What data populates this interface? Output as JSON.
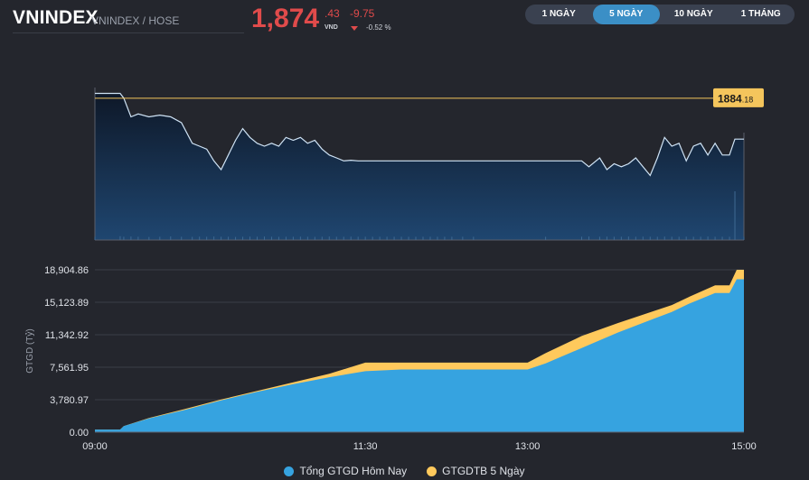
{
  "header": {
    "ticker": "VNINDEX",
    "exchange": "VNINDEX / HOSE",
    "price_int": "1,874",
    "price_dec": ".43",
    "unit": "VND",
    "change": "-9.75",
    "change_pct": "-0.52 %"
  },
  "range_tabs": [
    {
      "label": "1 NGÀY",
      "active": false
    },
    {
      "label": "5 NGÀY",
      "active": true
    },
    {
      "label": "10 NGÀY",
      "active": false
    },
    {
      "label": "1 THÁNG",
      "active": false
    }
  ],
  "colors": {
    "price_line": "#cfe3f5",
    "reference_line": "#f4c55c",
    "today_value": "#36a3e0",
    "avg_5day": "#ffc95c",
    "negative": "#e04b4b"
  },
  "chart_data": [
    {
      "type": "line",
      "title": "",
      "reference": {
        "value": 1884.18,
        "label_int": "1884",
        "label_dec": ".18"
      },
      "ylim": [
        1860,
        1886
      ],
      "xlim": [
        0,
        360
      ],
      "x": [
        0,
        14,
        16,
        20,
        24,
        30,
        36,
        42,
        48,
        54,
        58,
        62,
        66,
        70,
        74,
        78,
        82,
        86,
        90,
        94,
        98,
        102,
        106,
        110,
        114,
        118,
        122,
        126,
        130,
        134,
        138,
        142,
        146,
        150,
        154,
        158,
        162,
        166,
        170,
        174,
        178,
        182,
        186,
        190,
        194,
        198,
        204,
        210,
        250,
        270,
        274,
        280,
        284,
        288,
        292,
        296,
        300,
        304,
        308,
        312,
        316,
        320,
        324,
        328,
        332,
        336,
        340,
        344,
        348,
        352,
        355,
        360
      ],
      "y": [
        1885.0,
        1885.0,
        1884.2,
        1881.0,
        1881.5,
        1881.0,
        1881.3,
        1881.0,
        1880.0,
        1876.5,
        1876.0,
        1875.5,
        1873.5,
        1872.0,
        1874.5,
        1877.0,
        1879.0,
        1877.5,
        1876.5,
        1876.0,
        1876.5,
        1876.0,
        1877.5,
        1877.0,
        1877.5,
        1876.5,
        1877.0,
        1875.5,
        1874.5,
        1874.0,
        1873.5,
        1873.6,
        1873.5,
        1873.5,
        1873.5,
        1873.5,
        1873.5,
        1873.5,
        1873.5,
        1873.5,
        1873.5,
        1873.5,
        1873.5,
        1873.5,
        1873.5,
        1873.5,
        1873.5,
        1873.5,
        1873.5,
        1873.5,
        1872.5,
        1874.0,
        1872.0,
        1873.0,
        1872.5,
        1873.0,
        1874.0,
        1872.5,
        1871.0,
        1874.0,
        1877.5,
        1876.0,
        1876.5,
        1873.5,
        1876.0,
        1876.5,
        1874.5,
        1876.5,
        1874.5,
        1874.5,
        1877.2,
        1877.2
      ],
      "volume_y": [
        0.3,
        0.35,
        0.3,
        0.32,
        0.3,
        0.28,
        0.3,
        0.33,
        0.3,
        0.29,
        0.31,
        0.3,
        0.32,
        0.3,
        0.3,
        0.28,
        0.3,
        0.31,
        0.3,
        0.32,
        0.3,
        0.29,
        0.3,
        0.3,
        0.31,
        0.3,
        0.29,
        0.3,
        0.32,
        0.3,
        0.3,
        0.31,
        0.3,
        0.3,
        0.3,
        0.3,
        0.3,
        0.3,
        0.3,
        0.3,
        0.3,
        0.3,
        0.3,
        0.3,
        0.3,
        0.3,
        0.3,
        0.3,
        0.3,
        0.3,
        0.32,
        0.3,
        0.31,
        0.3,
        0.3,
        0.32,
        0.3,
        0.31,
        0.3,
        0.3,
        0.32,
        0.3,
        0.3,
        0.31,
        0.3,
        0.3,
        0.32,
        0.3,
        0.3,
        0.3,
        4.5,
        0.3
      ]
    },
    {
      "type": "area",
      "xlabel": "",
      "ylabel": "GTGD (Tỷ)",
      "ylim": [
        0,
        18904.86
      ],
      "xlim": [
        0,
        360
      ],
      "yticks": [
        "0.00",
        "3,780.97",
        "7,561.95",
        "11,342.92",
        "15,123.89",
        "18,904.86"
      ],
      "ytick_values": [
        0,
        3780.97,
        7561.95,
        11342.92,
        15123.89,
        18904.86
      ],
      "xticks": [
        "09:00",
        "11:30",
        "13:00",
        "15:00"
      ],
      "xtick_values": [
        0,
        150,
        240,
        360
      ],
      "x": [
        0,
        14,
        16,
        30,
        50,
        70,
        90,
        110,
        130,
        150,
        170,
        200,
        240,
        250,
        270,
        290,
        310,
        320,
        330,
        344,
        346,
        352,
        356,
        360
      ],
      "series": [
        {
          "name": "Tổng GTGD Hôm Nay",
          "values": [
            300,
            300,
            700,
            1600,
            2600,
            3700,
            4700,
            5600,
            6400,
            7100,
            7300,
            7300,
            7300,
            8000,
            9800,
            11600,
            13200,
            14000,
            15000,
            16200,
            16200,
            16200,
            17800,
            17800
          ]
        },
        {
          "name": "GTGDTB 5 Ngày",
          "values": [
            300,
            300,
            700,
            1650,
            2700,
            3800,
            4800,
            5800,
            6800,
            8100,
            8100,
            8100,
            8100,
            9200,
            11200,
            12700,
            14100,
            14800,
            15800,
            17100,
            17100,
            17100,
            18904.86,
            18904.86
          ]
        }
      ]
    }
  ]
}
